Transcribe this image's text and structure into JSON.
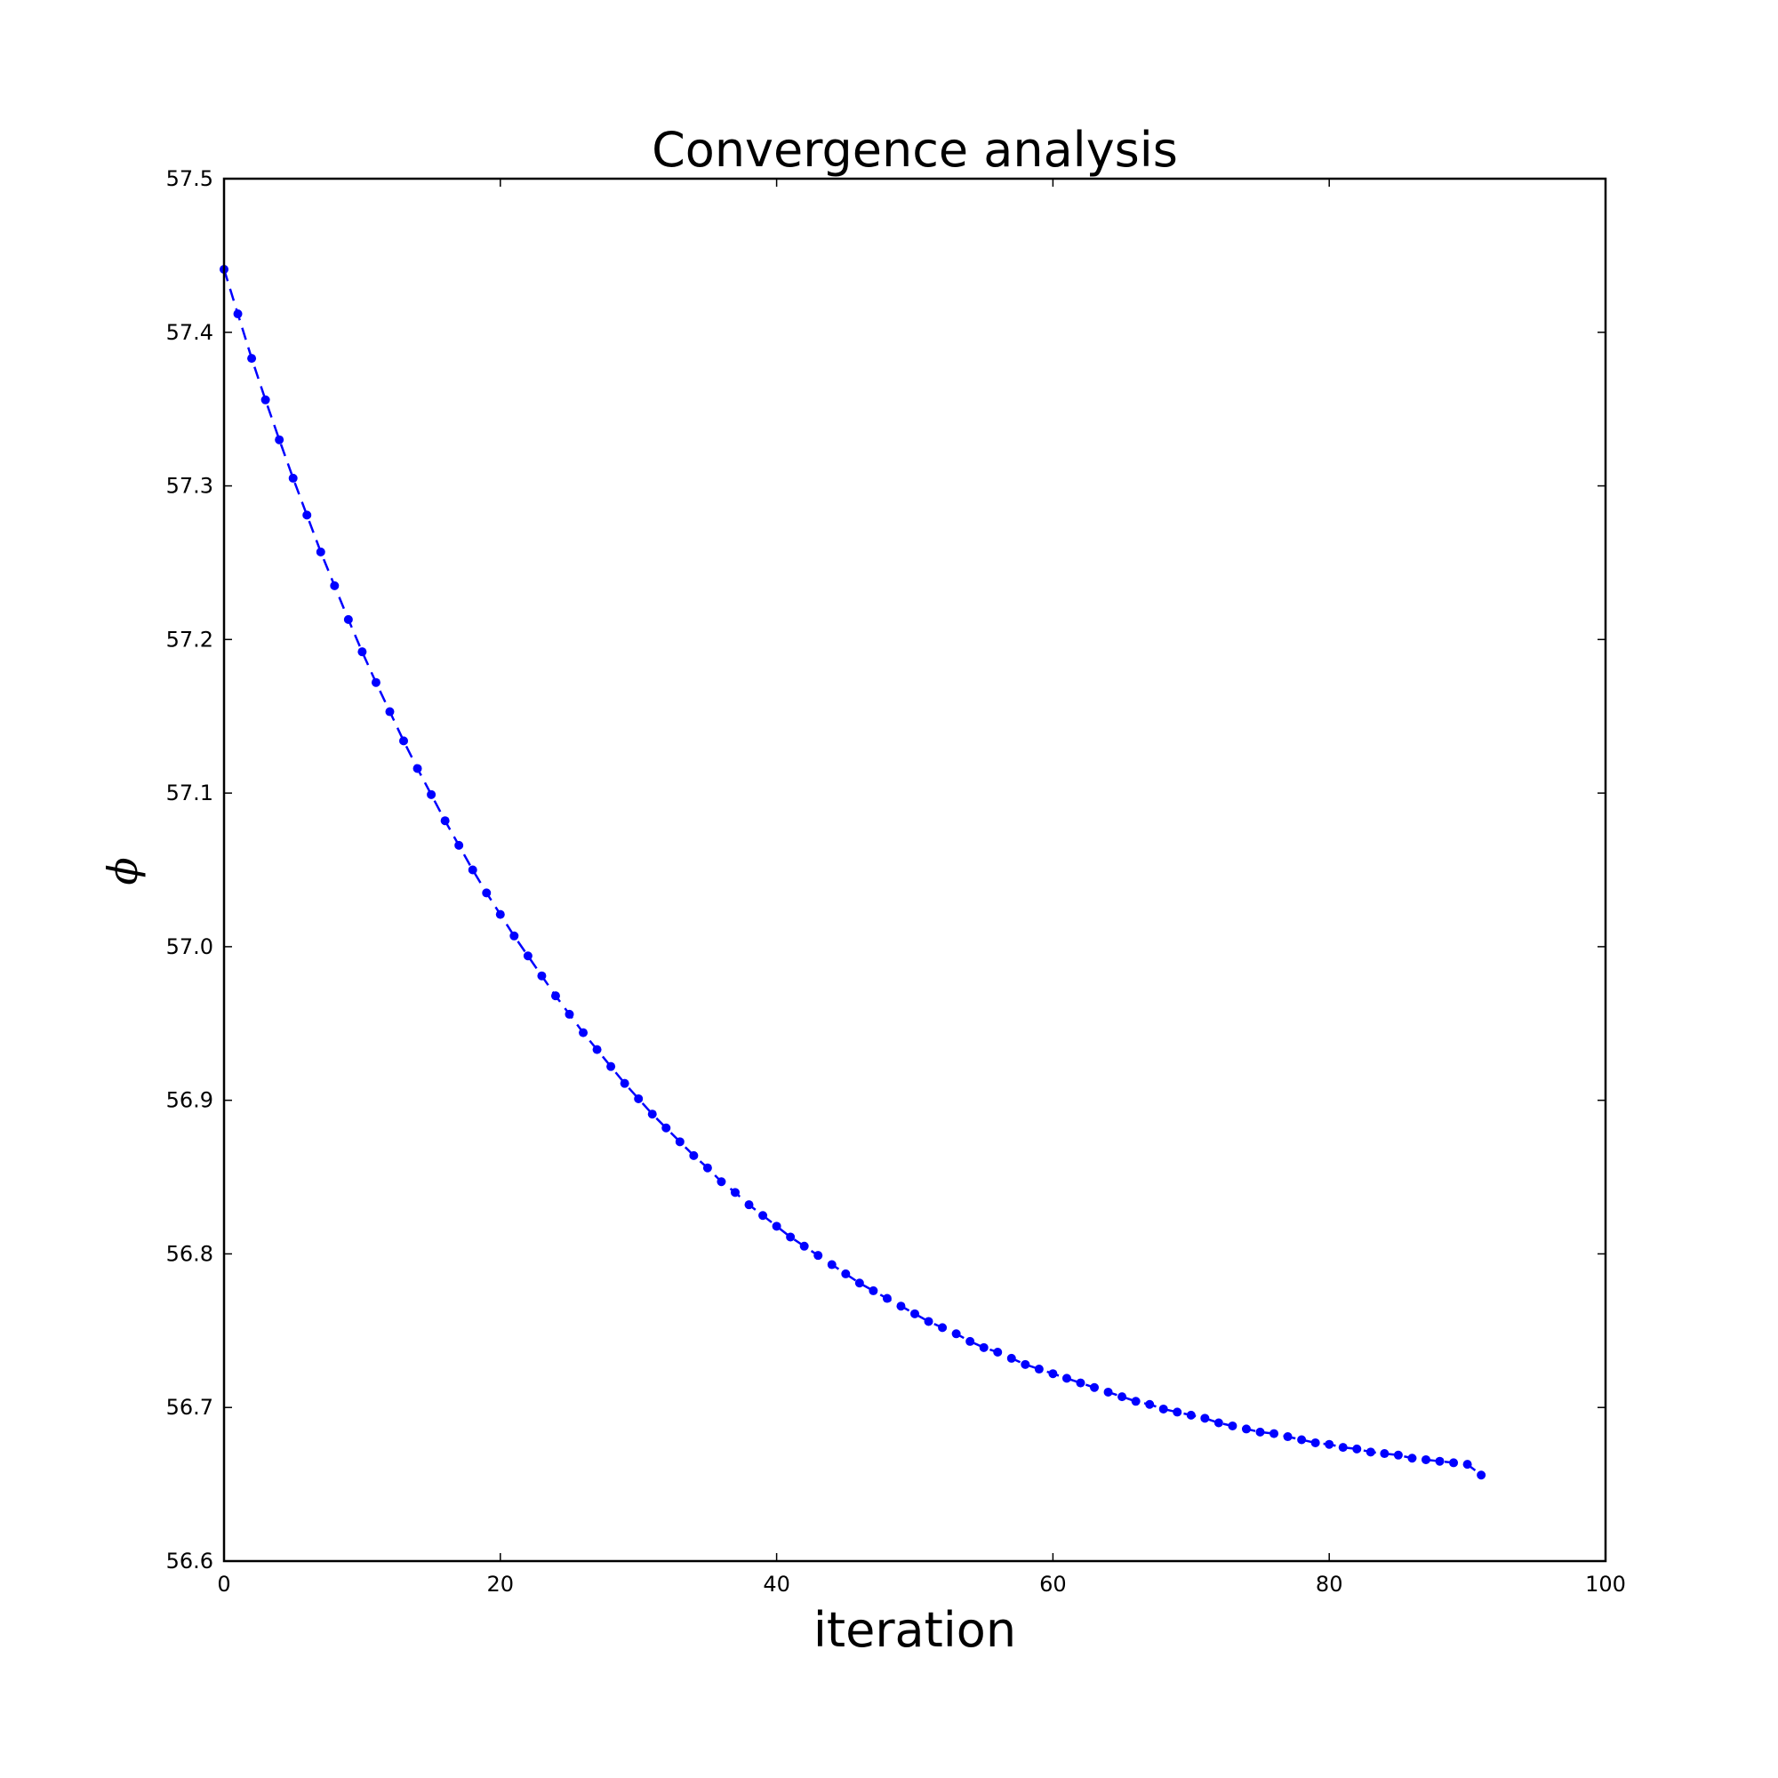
{
  "chart_data": {
    "type": "line",
    "title": "Convergence analysis",
    "xlabel": "iteration",
    "ylabel": "ϕ",
    "xlim": [
      0,
      100
    ],
    "ylim": [
      56.6,
      57.5
    ],
    "xticks": [
      "0",
      "20",
      "40",
      "60",
      "80",
      "100"
    ],
    "yticks": [
      "56.6",
      "56.7",
      "56.8",
      "56.9",
      "57.0",
      "57.1",
      "57.2",
      "57.3",
      "57.4",
      "57.5"
    ],
    "grid": false,
    "line_style": "dashed",
    "marker": "circle",
    "color": "#0000ff",
    "series": [
      {
        "x": [
          0,
          1,
          2,
          3,
          4,
          5,
          6,
          7,
          8,
          9,
          10,
          11,
          12,
          13,
          14,
          15,
          16,
          17,
          18,
          19,
          20,
          21,
          22,
          23,
          24,
          25,
          26,
          27,
          28,
          29,
          30,
          31,
          32,
          33,
          34,
          35,
          36,
          37,
          38,
          39,
          40,
          41,
          42,
          43,
          44,
          45,
          46,
          47,
          48,
          49,
          50,
          51,
          52,
          53,
          54,
          55,
          56,
          57,
          58,
          59,
          60,
          61,
          62,
          63,
          64,
          65,
          66,
          67,
          68,
          69,
          70,
          71,
          72,
          73,
          74,
          75,
          76,
          77,
          78,
          79,
          80,
          81,
          82,
          83,
          84,
          85,
          86,
          87,
          88,
          89,
          90,
          91
        ],
        "values": [
          57.441,
          57.412,
          57.383,
          57.356,
          57.33,
          57.305,
          57.281,
          57.257,
          57.235,
          57.213,
          57.192,
          57.172,
          57.153,
          57.134,
          57.116,
          57.099,
          57.082,
          57.066,
          57.05,
          57.035,
          57.021,
          57.007,
          56.994,
          56.981,
          56.968,
          56.956,
          56.944,
          56.933,
          56.922,
          56.911,
          56.901,
          56.891,
          56.882,
          56.873,
          56.864,
          56.856,
          56.847,
          56.84,
          56.832,
          56.825,
          56.818,
          56.811,
          56.805,
          56.799,
          56.793,
          56.787,
          56.781,
          56.776,
          56.771,
          56.766,
          56.761,
          56.756,
          56.752,
          56.748,
          56.743,
          56.739,
          56.736,
          56.732,
          56.728,
          56.725,
          56.722,
          56.719,
          56.716,
          56.713,
          56.71,
          56.707,
          56.704,
          56.702,
          56.699,
          56.697,
          56.695,
          56.693,
          56.69,
          56.688,
          56.686,
          56.684,
          56.683,
          56.681,
          56.679,
          56.677,
          56.676,
          56.674,
          56.673,
          56.671,
          56.67,
          56.669,
          56.667,
          56.666,
          56.665,
          56.664,
          56.663,
          56.656
        ]
      }
    ]
  }
}
